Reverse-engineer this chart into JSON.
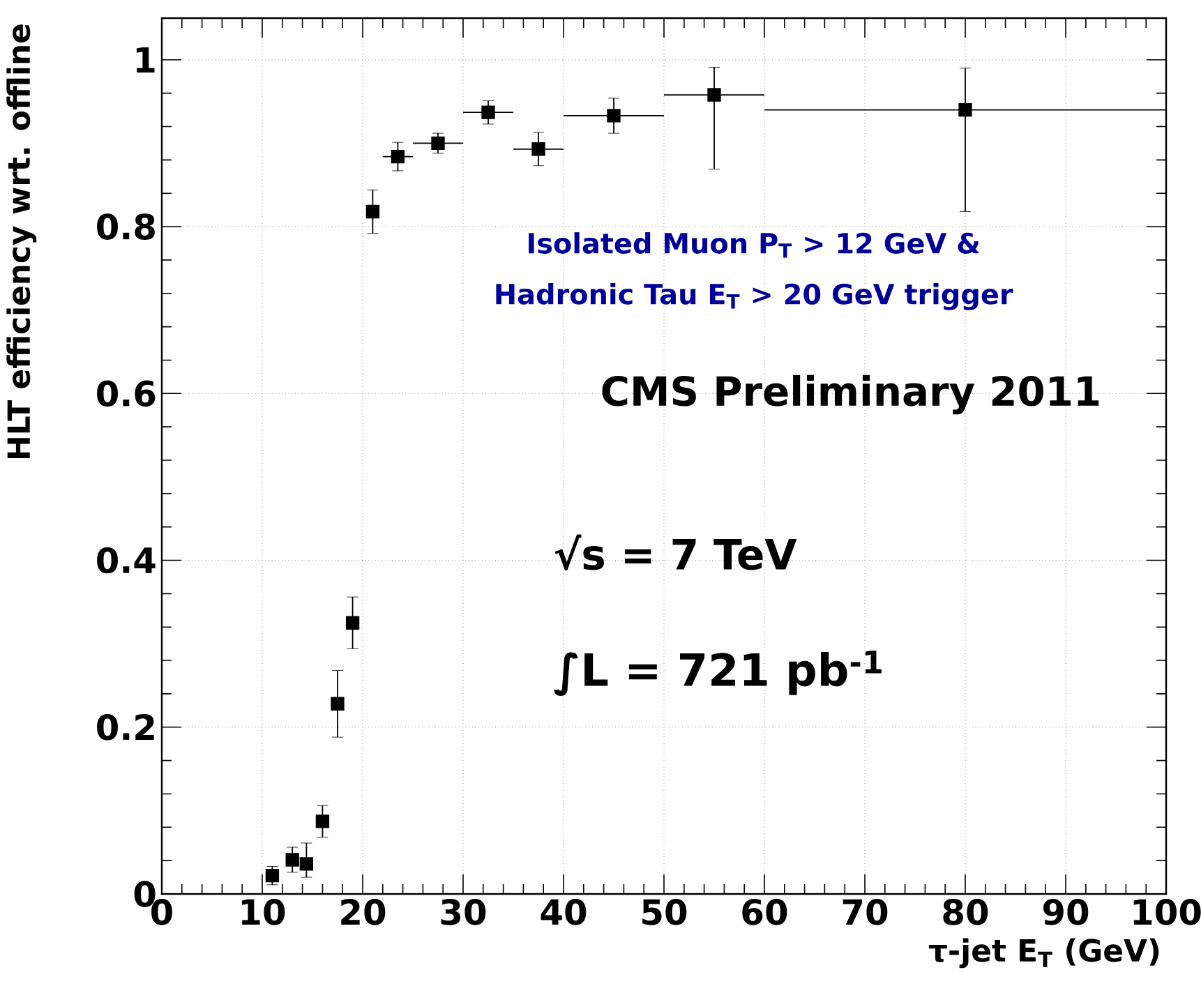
{
  "chart_data": {
    "type": "scatter",
    "xlabel": "τ-jet E$_{T}$ (GeV)",
    "ylabel": "HLT efficiency wrt. offline",
    "x": [
      11,
      13,
      14.4,
      16,
      17.5,
      19,
      21,
      23.5,
      27.5,
      32.5,
      37.5,
      45,
      55,
      80
    ],
    "values": [
      0.022,
      0.041,
      0.036,
      0.087,
      0.228,
      0.325,
      0.818,
      0.884,
      0.9,
      0.937,
      0.893,
      0.933,
      0.958,
      0.94
    ],
    "errors": [
      0.011,
      0.015,
      [
        0.02,
        0.061
      ],
      0.019,
      0.04,
      0.031,
      0.026,
      0.017,
      0.012,
      0.014,
      0.02,
      0.021,
      [
        0.869,
        0.991
      ],
      [
        0.818,
        0.99
      ]
    ],
    "xerrors": [
      null,
      null,
      null,
      null,
      null,
      null,
      null,
      [
        22,
        25
      ],
      [
        25,
        30
      ],
      [
        30,
        35
      ],
      [
        35,
        40
      ],
      [
        40,
        50
      ],
      [
        50,
        60
      ],
      [
        60,
        100
      ]
    ],
    "color": "#000000",
    "marker": "square",
    "grid": true,
    "xlim": [
      0,
      100
    ],
    "ylim": [
      0,
      1.05
    ],
    "xticks": [
      0,
      10,
      20,
      30,
      40,
      50,
      60,
      70,
      80,
      90,
      100
    ],
    "yticks": [
      0,
      0.2,
      0.4,
      0.6,
      0.8,
      1
    ],
    "annotations": [
      "Isolated Muon P$_{T}$ > 12 GeV &",
      "Hadronic Tau E$_{T}$ > 20 GeV trigger",
      "CMS Preliminary 2011",
      "√s = 7 TeV",
      "∫L = 721 pb$^{-1}$"
    ]
  }
}
